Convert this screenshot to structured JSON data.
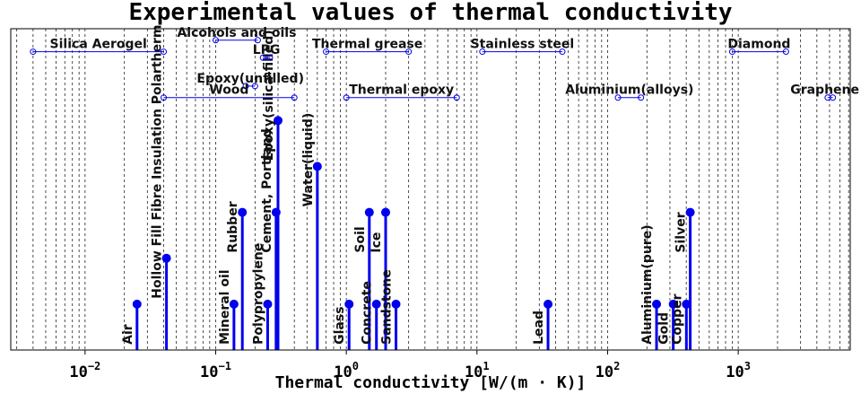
{
  "chart_data": {
    "type": "stem",
    "title": "Experimental values of thermal conductivity",
    "x_label": "Thermal conductivity [W/(m · K)]",
    "x_log": true,
    "xlim": [
      0.0027,
      7200
    ],
    "ylim": [
      0,
      7
    ],
    "xticks": [
      {
        "value": 0.01,
        "label": "10−2"
      },
      {
        "value": 0.1,
        "label": "10−1"
      },
      {
        "value": 1,
        "label": "100"
      },
      {
        "value": 10,
        "label": "101"
      },
      {
        "value": 100,
        "label": "102"
      },
      {
        "value": 1000,
        "label": "103"
      }
    ],
    "grid": true,
    "color": "#0000ee",
    "stems": {
      "labels": [
        "Air",
        "Hollow Fill Fibre Insulation Polartherm",
        "Mineral oil",
        "Rubber",
        "Polypropylene",
        "Cement, Portland",
        "Epoxy(silica-filled)",
        "Water(liquid)",
        "Glass",
        "Soil",
        "Concrete",
        "Ice",
        "Sandstone",
        "Lead",
        "Aluminium(pure)",
        "Gold",
        "Copper",
        "Silver"
      ],
      "x": [
        0.025,
        0.042,
        0.138,
        0.16,
        0.25,
        0.29,
        0.3,
        0.6,
        1.05,
        1.5,
        1.7,
        2,
        2.4,
        35,
        237,
        318,
        401,
        429
      ],
      "y": [
        1,
        2,
        1,
        3,
        1,
        3,
        5,
        4,
        1,
        3,
        1,
        3,
        1,
        1,
        1,
        1,
        1,
        3
      ]
    },
    "ranges": {
      "labels": [
        "Silica Aerogel",
        "Alcohols and oils",
        "LPG",
        "Epoxy(unfilled)",
        "Wood",
        "Thermal grease",
        "Thermal epoxy",
        "Stainless steel",
        "Aluminium(alloys)",
        "Diamond",
        "Graphene"
      ],
      "x_start": [
        0.004,
        0.1,
        0.23,
        0.17,
        0.04,
        0.7,
        1,
        11,
        120,
        900,
        4840
      ],
      "x_end": [
        0.04,
        0.21,
        0.26,
        0.2,
        0.4,
        3,
        7,
        45,
        180,
        2320,
        5300
      ],
      "y": [
        6.5,
        6.75,
        6.37,
        5.75,
        5.5,
        6.5,
        5.5,
        6.5,
        5.5,
        6.5,
        5.5
      ]
    }
  }
}
